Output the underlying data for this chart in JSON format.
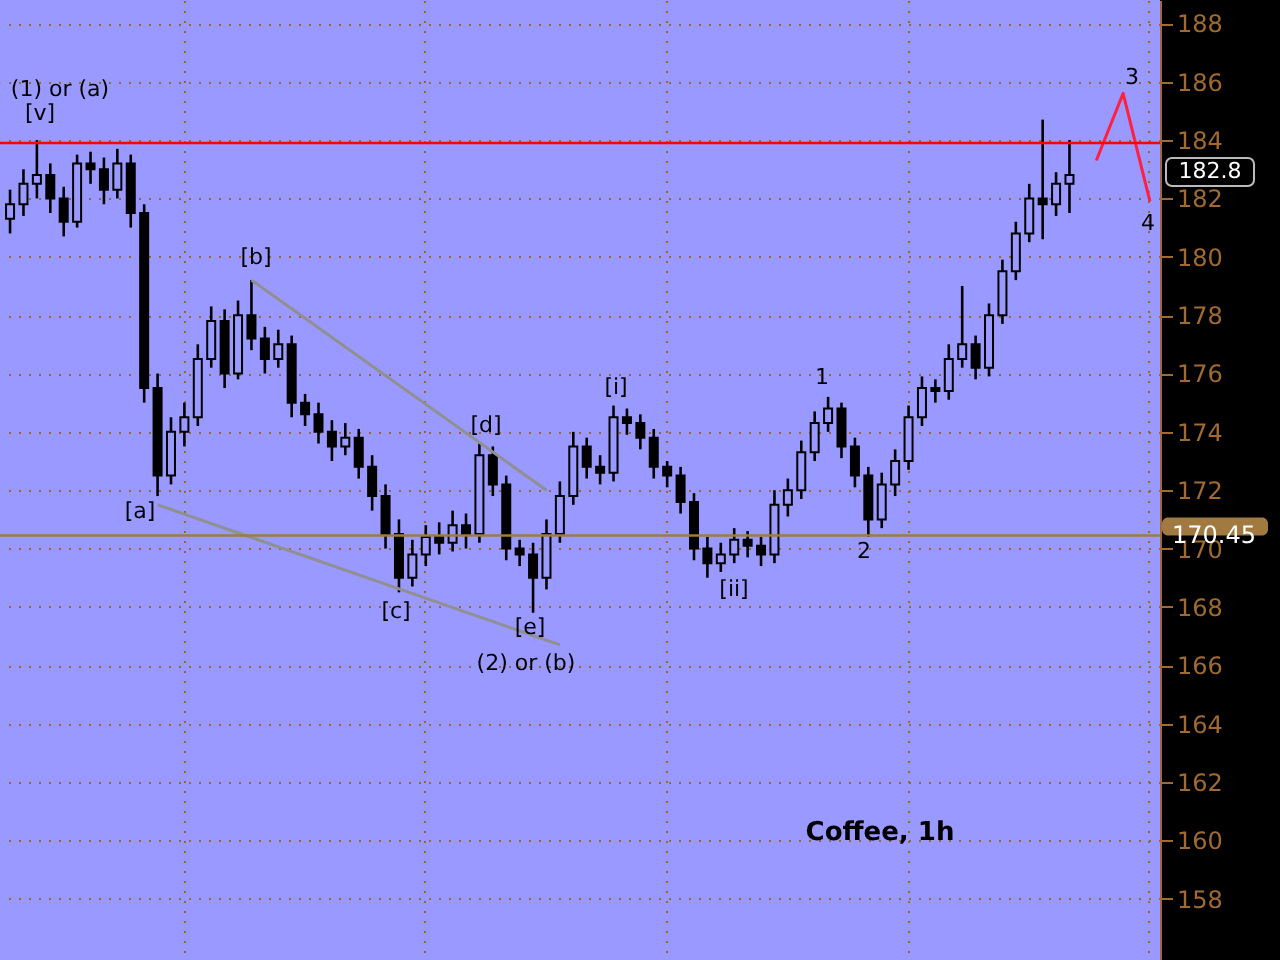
{
  "chart_data": {
    "type": "candlestick",
    "title": "Coffee, 1h",
    "categories": [
      null,
      null,
      null,
      null,
      null,
      null,
      null,
      null,
      null,
      null,
      null,
      null,
      null,
      null,
      null,
      null,
      null,
      null,
      null,
      null,
      null,
      null,
      null,
      null,
      null,
      null,
      null,
      null,
      null,
      null,
      null,
      null,
      null,
      null,
      null,
      null,
      null,
      null,
      null,
      null,
      null,
      null,
      null,
      null,
      null,
      null,
      null,
      null,
      null,
      null,
      null,
      null,
      null,
      null,
      null,
      null,
      null,
      null,
      null,
      null,
      null,
      null,
      null,
      null,
      null,
      null,
      null,
      null,
      null,
      null,
      null,
      null,
      null,
      null,
      null,
      null,
      null,
      null,
      null,
      null,
      null,
      null,
      null,
      null,
      null,
      null
    ],
    "ohlc": [
      [
        181.3,
        182.3,
        180.8,
        181.8
      ],
      [
        181.8,
        183.0,
        181.4,
        182.5
      ],
      [
        182.5,
        184.0,
        182.0,
        182.8
      ],
      [
        182.8,
        183.2,
        181.5,
        182.0
      ],
      [
        182.0,
        182.4,
        180.7,
        181.2
      ],
      [
        181.2,
        183.5,
        181.0,
        183.2
      ],
      [
        183.2,
        183.6,
        182.5,
        183.0
      ],
      [
        183.0,
        183.4,
        181.8,
        182.3
      ],
      [
        182.3,
        183.7,
        182.0,
        183.2
      ],
      [
        183.2,
        183.5,
        181.0,
        181.5
      ],
      [
        181.5,
        181.8,
        175.0,
        175.5
      ],
      [
        175.5,
        176.0,
        171.8,
        172.5
      ],
      [
        172.5,
        174.5,
        172.2,
        174.0
      ],
      [
        174.0,
        175.0,
        173.5,
        174.5
      ],
      [
        174.5,
        177.0,
        174.2,
        176.5
      ],
      [
        176.5,
        178.3,
        176.2,
        177.8
      ],
      [
        177.8,
        178.2,
        175.5,
        176.0
      ],
      [
        176.0,
        178.5,
        175.8,
        178.0
      ],
      [
        178.0,
        179.2,
        176.8,
        177.2
      ],
      [
        177.2,
        177.6,
        176.0,
        176.5
      ],
      [
        176.5,
        177.5,
        176.2,
        177.0
      ],
      [
        177.0,
        177.3,
        174.5,
        175.0
      ],
      [
        175.0,
        175.3,
        174.2,
        174.6
      ],
      [
        174.6,
        175.0,
        173.6,
        174.0
      ],
      [
        174.0,
        174.4,
        173.0,
        173.5
      ],
      [
        173.5,
        174.3,
        173.2,
        173.8
      ],
      [
        173.8,
        174.1,
        172.4,
        172.8
      ],
      [
        172.8,
        173.2,
        171.3,
        171.8
      ],
      [
        171.8,
        172.2,
        170.0,
        170.5
      ],
      [
        170.5,
        171.0,
        168.5,
        169.0
      ],
      [
        169.0,
        170.3,
        168.7,
        169.8
      ],
      [
        169.8,
        170.8,
        169.4,
        170.4
      ],
      [
        170.4,
        170.9,
        169.8,
        170.2
      ],
      [
        170.2,
        171.3,
        169.9,
        170.8
      ],
      [
        170.8,
        171.2,
        170.0,
        170.5
      ],
      [
        170.5,
        173.6,
        170.2,
        173.2
      ],
      [
        173.2,
        173.5,
        171.8,
        172.2
      ],
      [
        172.2,
        172.5,
        169.6,
        170.0
      ],
      [
        170.0,
        170.3,
        169.4,
        169.8
      ],
      [
        169.8,
        170.2,
        167.8,
        169.0
      ],
      [
        169.0,
        171.0,
        168.6,
        170.5
      ],
      [
        170.5,
        172.3,
        170.2,
        171.8
      ],
      [
        171.8,
        174.0,
        171.5,
        173.5
      ],
      [
        173.5,
        173.8,
        172.4,
        172.8
      ],
      [
        172.8,
        173.2,
        172.2,
        172.6
      ],
      [
        172.6,
        174.9,
        172.3,
        174.5
      ],
      [
        174.5,
        174.8,
        173.9,
        174.3
      ],
      [
        174.3,
        174.6,
        173.4,
        173.8
      ],
      [
        173.8,
        174.1,
        172.4,
        172.8
      ],
      [
        172.8,
        173.0,
        172.1,
        172.5
      ],
      [
        172.5,
        172.8,
        171.2,
        171.6
      ],
      [
        171.6,
        171.9,
        169.6,
        170.0
      ],
      [
        170.0,
        170.4,
        169.0,
        169.5
      ],
      [
        169.5,
        170.2,
        169.2,
        169.8
      ],
      [
        169.8,
        170.7,
        169.5,
        170.3
      ],
      [
        170.3,
        170.6,
        169.7,
        170.1
      ],
      [
        170.1,
        170.4,
        169.4,
        169.8
      ],
      [
        169.8,
        172.0,
        169.5,
        171.5
      ],
      [
        171.5,
        172.4,
        171.1,
        172.0
      ],
      [
        172.0,
        173.7,
        171.7,
        173.3
      ],
      [
        173.3,
        174.7,
        173.0,
        174.3
      ],
      [
        174.3,
        175.2,
        174.0,
        174.8
      ],
      [
        174.8,
        175.0,
        173.1,
        173.5
      ],
      [
        173.5,
        173.8,
        172.1,
        172.5
      ],
      [
        172.5,
        172.8,
        170.4,
        171.0
      ],
      [
        171.0,
        172.6,
        170.7,
        172.2
      ],
      [
        172.2,
        173.4,
        171.8,
        173.0
      ],
      [
        173.0,
        174.9,
        172.7,
        174.5
      ],
      [
        174.5,
        175.9,
        174.2,
        175.5
      ],
      [
        175.5,
        175.8,
        175.0,
        175.4
      ],
      [
        175.4,
        177.0,
        175.1,
        176.5
      ],
      [
        176.5,
        179.0,
        176.2,
        177.0
      ],
      [
        177.0,
        177.3,
        175.8,
        176.2
      ],
      [
        176.2,
        178.4,
        175.9,
        178.0
      ],
      [
        178.0,
        179.9,
        177.7,
        179.5
      ],
      [
        179.5,
        181.2,
        179.2,
        180.8
      ],
      [
        180.8,
        182.5,
        180.5,
        182.0
      ],
      [
        182.0,
        184.7,
        180.6,
        181.8
      ],
      [
        181.8,
        182.9,
        181.4,
        182.5
      ],
      [
        182.5,
        184.0,
        181.5,
        182.8
      ],
      null,
      null,
      null,
      null,
      null,
      null
    ],
    "series": [
      {
        "type": "line",
        "color": "#909090",
        "values": [
          null,
          null,
          null,
          null,
          null,
          null,
          null,
          null,
          null,
          null,
          null,
          null,
          null,
          null,
          null,
          null,
          null,
          null,
          179.2,
          null,
          null,
          null,
          null,
          null,
          null,
          null,
          null,
          null,
          null,
          null,
          null,
          null,
          null,
          null,
          null,
          null,
          null,
          null,
          null,
          null,
          172.0,
          null,
          null,
          null,
          null,
          null,
          null,
          null,
          null,
          null,
          null,
          null,
          null,
          null,
          null,
          null,
          null,
          null,
          null,
          null,
          null,
          null,
          null,
          null,
          null,
          null,
          null,
          null,
          null,
          null,
          null,
          null,
          null,
          null,
          null,
          null,
          null,
          null,
          null,
          null,
          null,
          null,
          null,
          null,
          null,
          null
        ]
      },
      {
        "type": "line",
        "color": "#909090",
        "values": [
          null,
          null,
          null,
          null,
          null,
          null,
          null,
          null,
          null,
          null,
          null,
          171.5,
          null,
          null,
          null,
          null,
          null,
          null,
          null,
          null,
          null,
          null,
          null,
          null,
          null,
          null,
          null,
          null,
          null,
          null,
          null,
          null,
          null,
          null,
          null,
          null,
          null,
          null,
          null,
          null,
          null,
          166.7,
          null,
          null,
          null,
          null,
          null,
          null,
          null,
          null,
          null,
          null,
          null,
          null,
          null,
          null,
          null,
          null,
          null,
          null,
          null,
          null,
          null,
          null,
          null,
          null,
          null,
          null,
          null,
          null,
          null,
          null,
          null,
          null,
          null,
          null,
          null,
          null,
          null,
          null,
          null,
          null,
          null,
          null,
          null,
          null
        ]
      },
      {
        "type": "line",
        "color": "#ff2040",
        "values": [
          null,
          null,
          null,
          null,
          null,
          null,
          null,
          null,
          null,
          null,
          null,
          null,
          null,
          null,
          null,
          null,
          null,
          null,
          null,
          null,
          null,
          null,
          null,
          null,
          null,
          null,
          null,
          null,
          null,
          null,
          null,
          null,
          null,
          null,
          null,
          null,
          null,
          null,
          null,
          null,
          null,
          null,
          null,
          null,
          null,
          null,
          null,
          null,
          null,
          null,
          null,
          null,
          null,
          null,
          null,
          null,
          null,
          null,
          null,
          null,
          null,
          null,
          null,
          null,
          null,
          null,
          null,
          null,
          null,
          null,
          null,
          null,
          null,
          null,
          null,
          null,
          null,
          null,
          null,
          null,
          null,
          183.3,
          null,
          185.6,
          null,
          181.9
        ]
      }
    ],
    "ylim": [
      155.9,
      188.8
    ],
    "yticks": [
      158,
      160,
      162,
      164,
      166,
      168,
      170,
      172,
      174,
      176,
      178,
      180,
      182,
      184,
      186,
      188
    ],
    "ref_lines": [
      {
        "axis": "y",
        "value": 183.9,
        "color": "#ff0000"
      },
      {
        "axis": "y",
        "value": 170.45,
        "label": "170.45",
        "color": "#a07a40"
      }
    ],
    "annotations": [
      "(1) or (a)",
      "[v]",
      "[a]",
      "[b]",
      "[c]",
      "[d]",
      "[e]",
      "(2) or (b)",
      "[i]",
      "[ii]",
      "1",
      "2",
      "3",
      "4",
      "182.8"
    ],
    "grid": true,
    "tick_labels": "y"
  }
}
